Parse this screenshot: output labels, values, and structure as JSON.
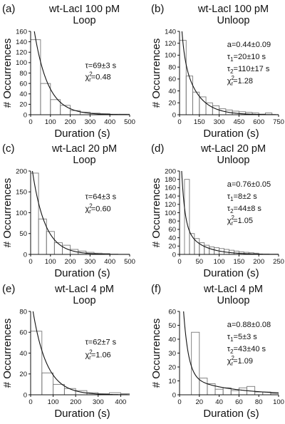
{
  "chart_data": [
    {
      "type": "bar",
      "panel_label": "(a)",
      "title": "wt-LacI 100 pM",
      "subtitle": "Loop",
      "xlabel": "Duration (s)",
      "ylabel": "# Occurrences",
      "xlim": [
        0,
        500
      ],
      "ylim": [
        0,
        160
      ],
      "xticks": [
        0,
        100,
        200,
        300,
        400,
        500
      ],
      "yticks": [
        0,
        20,
        40,
        60,
        80,
        100,
        120,
        140,
        160
      ],
      "bin_width": 50,
      "bins": [
        0,
        50,
        100,
        150,
        200,
        250,
        300,
        350,
        400,
        450
      ],
      "values": [
        144,
        60,
        29,
        18,
        8,
        5,
        3,
        2,
        1,
        1
      ],
      "fit": {
        "model": "single-exponential",
        "amplitude": 210,
        "tau": 69
      },
      "annotations": [
        {
          "base": "τ=69±3 s",
          "parts": []
        },
        {
          "base": "χ",
          "parts": [
            {
              "t": "2",
              "k": "sup"
            },
            {
              "t": "r",
              "k": "sub"
            },
            {
              "t": "=0.48",
              "k": "n"
            }
          ]
        }
      ]
    },
    {
      "type": "bar",
      "panel_label": "(b)",
      "title": "wt-LacI 100 pM",
      "subtitle": "Unloop",
      "xlabel": "Duration (s)",
      "ylabel": "# Occurrences",
      "xlim": [
        0,
        750
      ],
      "ylim": [
        0,
        140
      ],
      "xticks": [
        0,
        150,
        300,
        450,
        600,
        750
      ],
      "yticks": [
        0,
        20,
        40,
        60,
        80,
        100,
        120,
        140
      ],
      "bin_width": 50,
      "bins": [
        0,
        50,
        100,
        150,
        200,
        250,
        300,
        350,
        400,
        450,
        500,
        550,
        600,
        650
      ],
      "values": [
        125,
        65,
        38,
        30,
        20,
        15,
        10,
        8,
        6,
        5,
        4,
        3,
        1,
        3
      ],
      "fit": {
        "model": "double-exponential",
        "amplitude": 215,
        "a": 0.44,
        "tau1": 20,
        "tau2": 110
      },
      "annotations": [
        {
          "base": "a=0.44±0.09",
          "parts": []
        },
        {
          "base": "τ",
          "parts": [
            {
              "t": "1",
              "k": "sub"
            },
            {
              "t": "=20±10 s",
              "k": "n"
            }
          ]
        },
        {
          "base": "τ",
          "parts": [
            {
              "t": "2",
              "k": "sub"
            },
            {
              "t": "=110±17 s",
              "k": "n"
            }
          ]
        },
        {
          "base": "χ",
          "parts": [
            {
              "t": "2",
              "k": "sup"
            },
            {
              "t": "r",
              "k": "sub"
            },
            {
              "t": "=1.28",
              "k": "n"
            }
          ]
        }
      ]
    },
    {
      "type": "bar",
      "panel_label": "(c)",
      "title": "wt-LacI 20 pM",
      "subtitle": "Loop",
      "xlabel": "Duration (s)",
      "ylabel": "# Occurrences",
      "xlim": [
        0,
        500
      ],
      "ylim": [
        0,
        200
      ],
      "xticks": [
        0,
        100,
        200,
        300,
        400,
        500
      ],
      "yticks": [
        0,
        50,
        100,
        150,
        200
      ],
      "bin_width": 40,
      "bins": [
        0,
        40,
        80,
        120,
        160,
        200,
        240,
        280,
        320,
        360
      ],
      "values": [
        195,
        85,
        55,
        28,
        22,
        12,
        8,
        5,
        3,
        2
      ],
      "fit": {
        "model": "single-exponential",
        "amplitude": 230,
        "tau": 64
      },
      "annotations": [
        {
          "base": "τ=64±3 s",
          "parts": []
        },
        {
          "base": "χ",
          "parts": [
            {
              "t": "2",
              "k": "sup"
            },
            {
              "t": "r",
              "k": "sub"
            },
            {
              "t": "=0.60",
              "k": "n"
            }
          ]
        }
      ]
    },
    {
      "type": "bar",
      "panel_label": "(d)",
      "title": "wt-LacI 20 pM",
      "subtitle": "Unloop",
      "xlabel": "Duration (s)",
      "ylabel": "# Occurrences",
      "xlim": [
        0,
        250
      ],
      "ylim": [
        0,
        200
      ],
      "xticks": [
        0,
        50,
        100,
        150,
        200,
        250
      ],
      "yticks": [
        0,
        20,
        40,
        60,
        80,
        100,
        120,
        140,
        160,
        180,
        200
      ],
      "bin_width": 12.5,
      "bins": [
        12.5,
        25,
        37.5,
        50,
        62.5,
        75,
        87.5,
        100,
        112.5,
        125,
        137.5,
        150,
        162.5,
        175,
        187.5
      ],
      "values": [
        180,
        50,
        38,
        28,
        22,
        18,
        16,
        14,
        12,
        10,
        8,
        6,
        5,
        4,
        3
      ],
      "fit": {
        "model": "double-exponential",
        "amplitude": 330,
        "a": 0.76,
        "tau1": 8,
        "tau2": 44
      },
      "annotations": [
        {
          "base": "a=0.76±0.05",
          "parts": []
        },
        {
          "base": "τ",
          "parts": [
            {
              "t": "1",
              "k": "sub"
            },
            {
              "t": "=8±2 s",
              "k": "n"
            }
          ]
        },
        {
          "base": "τ",
          "parts": [
            {
              "t": "2",
              "k": "sub"
            },
            {
              "t": "=44±8 s",
              "k": "n"
            }
          ]
        },
        {
          "base": "χ",
          "parts": [
            {
              "t": "2",
              "k": "sup"
            },
            {
              "t": "r",
              "k": "sub"
            },
            {
              "t": "=1.05",
              "k": "n"
            }
          ]
        }
      ]
    },
    {
      "type": "bar",
      "panel_label": "(e)",
      "title": "wt-LacI 4 pM",
      "subtitle": "Loop",
      "xlabel": "Duration (s)",
      "ylabel": "# Occurrences",
      "xlim": [
        0,
        440
      ],
      "ylim": [
        0,
        80
      ],
      "xticks": [
        0,
        100,
        200,
        300,
        400
      ],
      "yticks": [
        0,
        20,
        40,
        60,
        80
      ],
      "bin_width": 50,
      "bins": [
        0,
        50,
        100,
        150,
        200,
        250,
        300,
        350,
        400
      ],
      "values": [
        61,
        21,
        10,
        6,
        4,
        2,
        1,
        2,
        1
      ],
      "fit": {
        "model": "single-exponential",
        "amplitude": 95,
        "tau": 62
      },
      "annotations": [
        {
          "base": "τ=62±7 s",
          "parts": []
        },
        {
          "base": "χ",
          "parts": [
            {
              "t": "2",
              "k": "sup"
            },
            {
              "t": "r",
              "k": "sub"
            },
            {
              "t": "=1.06",
              "k": "n"
            }
          ]
        }
      ]
    },
    {
      "type": "bar",
      "panel_label": "(f)",
      "title": "wt-LacI 4 pM",
      "subtitle": "Unloop",
      "xlabel": "Duration (s)",
      "ylabel": "# Occurrences",
      "xlim": [
        0,
        100
      ],
      "ylim": [
        0,
        60
      ],
      "xticks": [
        0,
        20,
        40,
        60,
        80,
        100
      ],
      "yticks": [
        0,
        10,
        20,
        30,
        40,
        50,
        60
      ],
      "bin_width": 8,
      "bins": [
        12,
        20,
        28,
        36,
        44,
        52,
        60,
        68,
        76,
        84,
        92
      ],
      "values": [
        45,
        12,
        8,
        4,
        5,
        3,
        5,
        6,
        2,
        2,
        1
      ],
      "fit": {
        "model": "double-exponential",
        "amplitude": 120,
        "a": 0.88,
        "tau1": 5,
        "tau2": 43
      },
      "annotations": [
        {
          "base": "a=0.88±0.08",
          "parts": []
        },
        {
          "base": "τ",
          "parts": [
            {
              "t": "1",
              "k": "sub"
            },
            {
              "t": "=5±3 s",
              "k": "n"
            }
          ]
        },
        {
          "base": "τ",
          "parts": [
            {
              "t": "2",
              "k": "sub"
            },
            {
              "t": "=43±40 s",
              "k": "n"
            }
          ]
        },
        {
          "base": "χ",
          "parts": [
            {
              "t": "2",
              "k": "sup"
            },
            {
              "t": "r",
              "k": "sub"
            },
            {
              "t": "=1.09",
              "k": "n"
            }
          ]
        }
      ]
    }
  ]
}
